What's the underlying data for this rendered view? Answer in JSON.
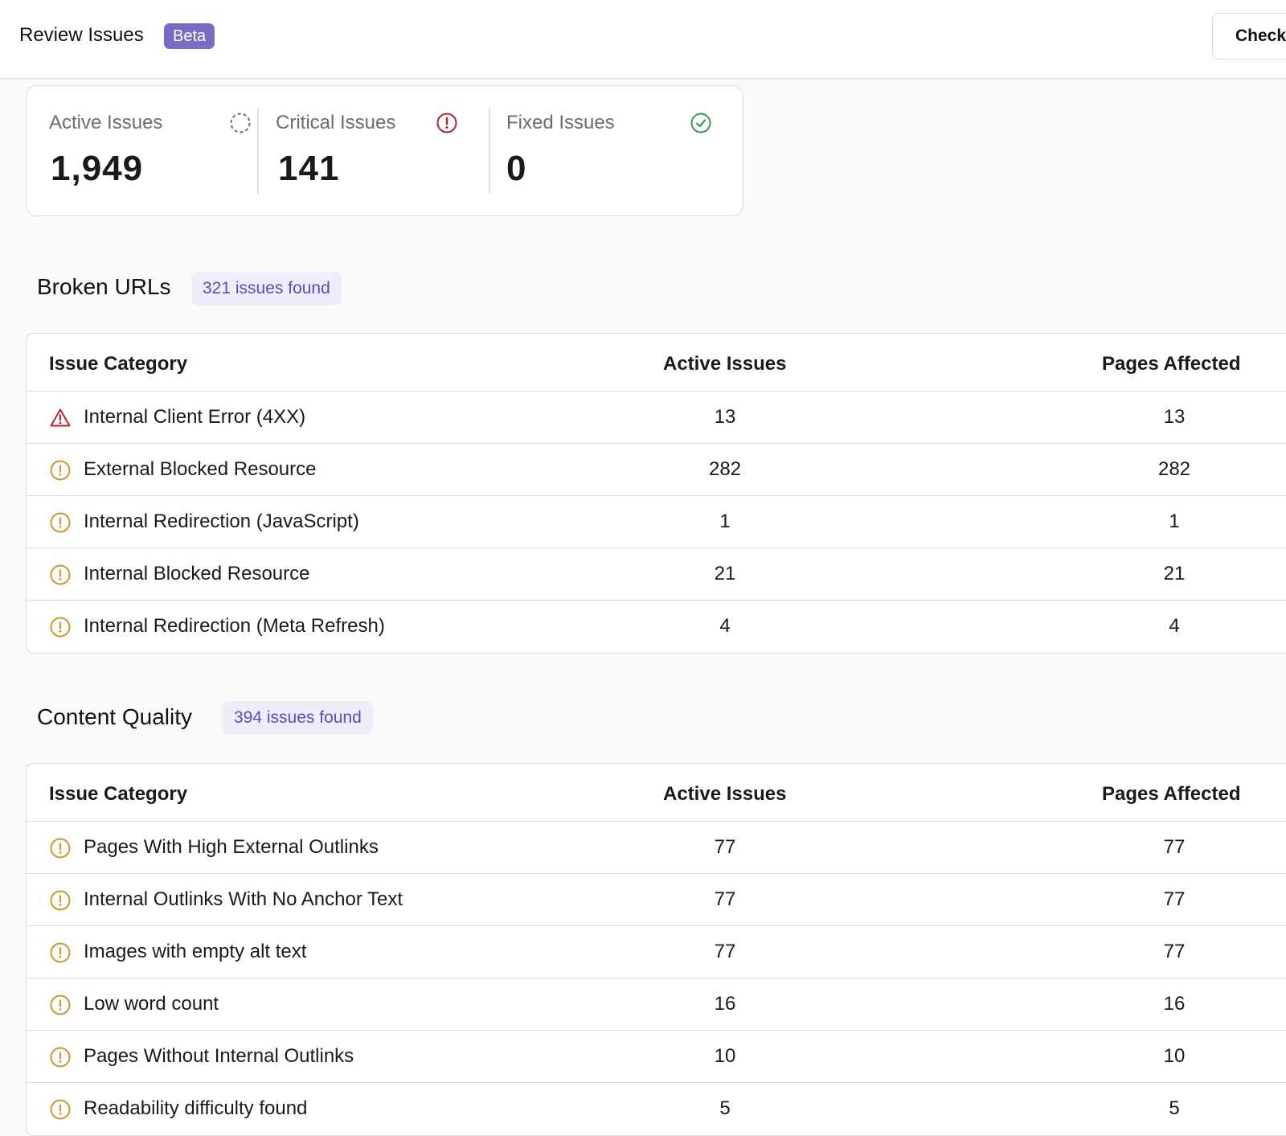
{
  "header": {
    "title": "Review Issues",
    "badge": "Beta",
    "action_label": "Check"
  },
  "stats": [
    {
      "label": "Active Issues",
      "value": "1,949",
      "icon": "dashed-circle-icon",
      "color": "#6b6b73"
    },
    {
      "label": "Critical Issues",
      "value": "141",
      "icon": "alert-circle-icon",
      "color": "#b3262a"
    },
    {
      "label": "Fixed Issues",
      "value": "0",
      "icon": "check-circle-icon",
      "color": "#2e9e5b"
    }
  ],
  "columns": {
    "category": "Issue Category",
    "active": "Active Issues",
    "pages": "Pages Affected"
  },
  "sections": [
    {
      "title": "Broken URLs",
      "badge": "321 issues found",
      "rows": [
        {
          "name": "Internal Client Error (4XX)",
          "severity": "critical",
          "active": "13",
          "pages": "13"
        },
        {
          "name": "External Blocked Resource",
          "severity": "warning",
          "active": "282",
          "pages": "282"
        },
        {
          "name": "Internal Redirection (JavaScript)",
          "severity": "warning",
          "active": "1",
          "pages": "1"
        },
        {
          "name": "Internal Blocked Resource",
          "severity": "warning",
          "active": "21",
          "pages": "21"
        },
        {
          "name": "Internal Redirection (Meta Refresh)",
          "severity": "warning",
          "active": "4",
          "pages": "4"
        }
      ]
    },
    {
      "title": "Content Quality",
      "badge": "394 issues found",
      "rows": [
        {
          "name": "Pages With High External Outlinks",
          "severity": "warning",
          "active": "77",
          "pages": "77"
        },
        {
          "name": "Internal Outlinks With No Anchor Text",
          "severity": "warning",
          "active": "77",
          "pages": "77"
        },
        {
          "name": "Images with empty alt text",
          "severity": "warning",
          "active": "77",
          "pages": "77"
        },
        {
          "name": "Low word count",
          "severity": "warning",
          "active": "16",
          "pages": "16"
        },
        {
          "name": "Pages Without Internal Outlinks",
          "severity": "warning",
          "active": "10",
          "pages": "10"
        },
        {
          "name": "Readability difficulty found",
          "severity": "warning",
          "active": "5",
          "pages": "5"
        }
      ]
    }
  ],
  "colors": {
    "accent": "#7c6bc4",
    "warning": "#d1952b",
    "critical": "#b3262a",
    "success": "#2e9e5b"
  }
}
